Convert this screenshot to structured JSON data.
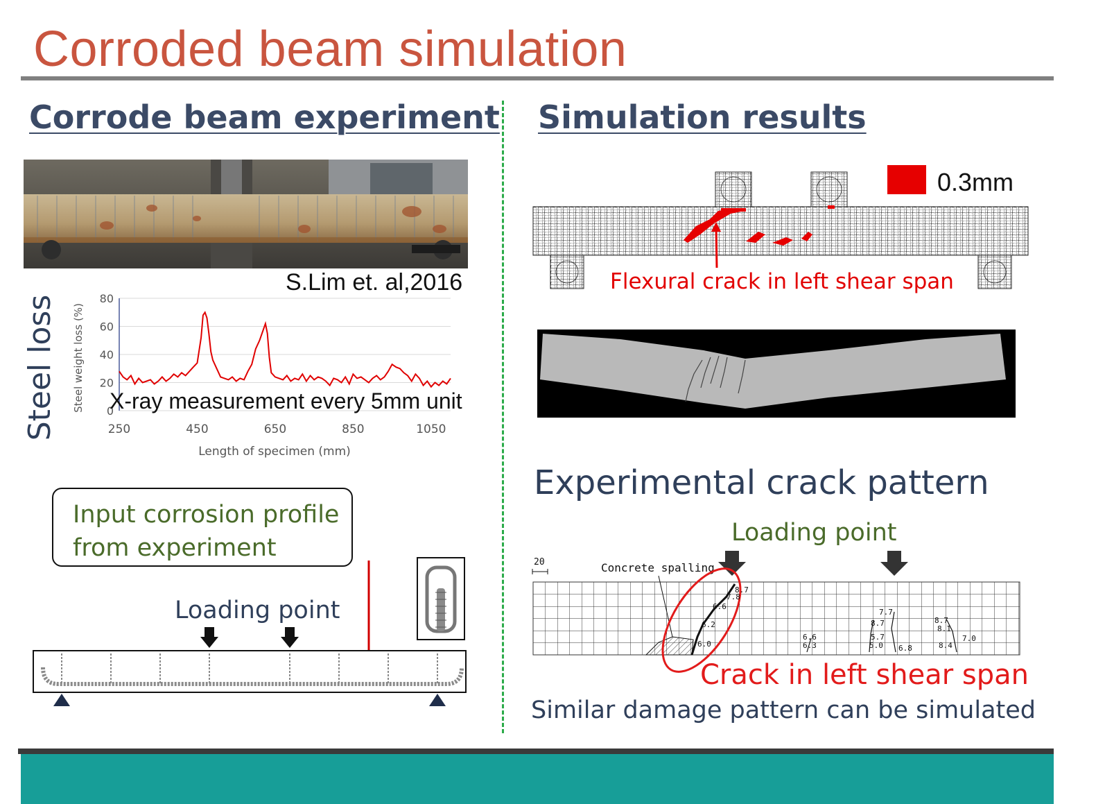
{
  "slide": {
    "title": "Corroded beam simulation",
    "left_heading": "Corrode beam experiment",
    "right_heading": "Simulation results",
    "citation": "S.Lim et. al,2016",
    "steel_loss_label": "Steel loss",
    "xray_note": "X-ray measurement every 5mm unit",
    "input_box_lines": [
      "Input corrosion profile",
      "from experiment"
    ],
    "loading_point_left": "Loading point",
    "legend_value": "0.3mm",
    "flexural_label": "Flexural crack in left shear span",
    "experimental_heading": "Experimental crack pattern",
    "loading_point_right": "Loading point",
    "concrete_spalling": "Concrete  spalling",
    "grid_scale": "20",
    "crack_numbers": [
      "8.7",
      "7.8",
      "6.6",
      "6.2",
      "6.0",
      "6.6",
      "6.3",
      "7.7",
      "8.7",
      "5.7",
      "5.0",
      "6.8",
      "8.7",
      "8.1",
      "7.0",
      "8.4"
    ],
    "crack_label": "Crack in left shear span",
    "similar_note": "Similar damage pattern can be simulated"
  },
  "colors": {
    "title": "#c9553f",
    "heading": "#3b4a66",
    "green_text": "#4a6b2a",
    "red": "#e20000",
    "divider": "#2cab4a",
    "footer_band": "#179e98"
  },
  "chart_data": {
    "type": "line",
    "xlabel": "Length of specimen (mm)",
    "ylabel": "Steel weight loss (%)",
    "xlim": [
      250,
      1100
    ],
    "ylim": [
      0,
      80
    ],
    "xticks": [
      250,
      450,
      650,
      850,
      1050
    ],
    "yticks": [
      0,
      20,
      40,
      60,
      80
    ],
    "grid": true,
    "series": [
      {
        "color": "#e00000",
        "x": [
          250,
          260,
          270,
          280,
          290,
          300,
          310,
          320,
          330,
          340,
          350,
          360,
          370,
          380,
          390,
          400,
          410,
          420,
          430,
          440,
          450,
          460,
          465,
          470,
          475,
          480,
          485,
          490,
          500,
          510,
          520,
          530,
          540,
          550,
          560,
          570,
          580,
          590,
          600,
          610,
          620,
          625,
          630,
          635,
          640,
          650,
          660,
          670,
          680,
          690,
          700,
          710,
          720,
          730,
          740,
          750,
          760,
          770,
          780,
          790,
          800,
          810,
          820,
          830,
          840,
          850,
          860,
          870,
          880,
          890,
          900,
          910,
          920,
          930,
          940,
          950,
          960,
          970,
          980,
          990,
          1000,
          1010,
          1020,
          1030,
          1040,
          1050,
          1060,
          1070,
          1080,
          1090,
          1100
        ],
        "y": [
          28,
          24,
          22,
          25,
          19,
          23,
          20,
          21,
          22,
          19,
          21,
          24,
          21,
          23,
          26,
          24,
          27,
          25,
          28,
          31,
          34,
          52,
          68,
          70,
          66,
          55,
          42,
          36,
          30,
          24,
          23,
          22,
          24,
          21,
          23,
          22,
          28,
          33,
          44,
          50,
          58,
          62,
          55,
          38,
          27,
          24,
          23,
          22,
          25,
          21,
          23,
          22,
          26,
          21,
          25,
          22,
          24,
          23,
          21,
          18,
          23,
          22,
          20,
          24,
          19,
          26,
          23,
          24,
          22,
          20,
          23,
          25,
          22,
          24,
          28,
          33,
          31,
          30,
          27,
          25,
          21,
          26,
          23,
          18,
          21,
          17,
          20,
          18,
          21,
          19,
          23
        ]
      }
    ]
  }
}
